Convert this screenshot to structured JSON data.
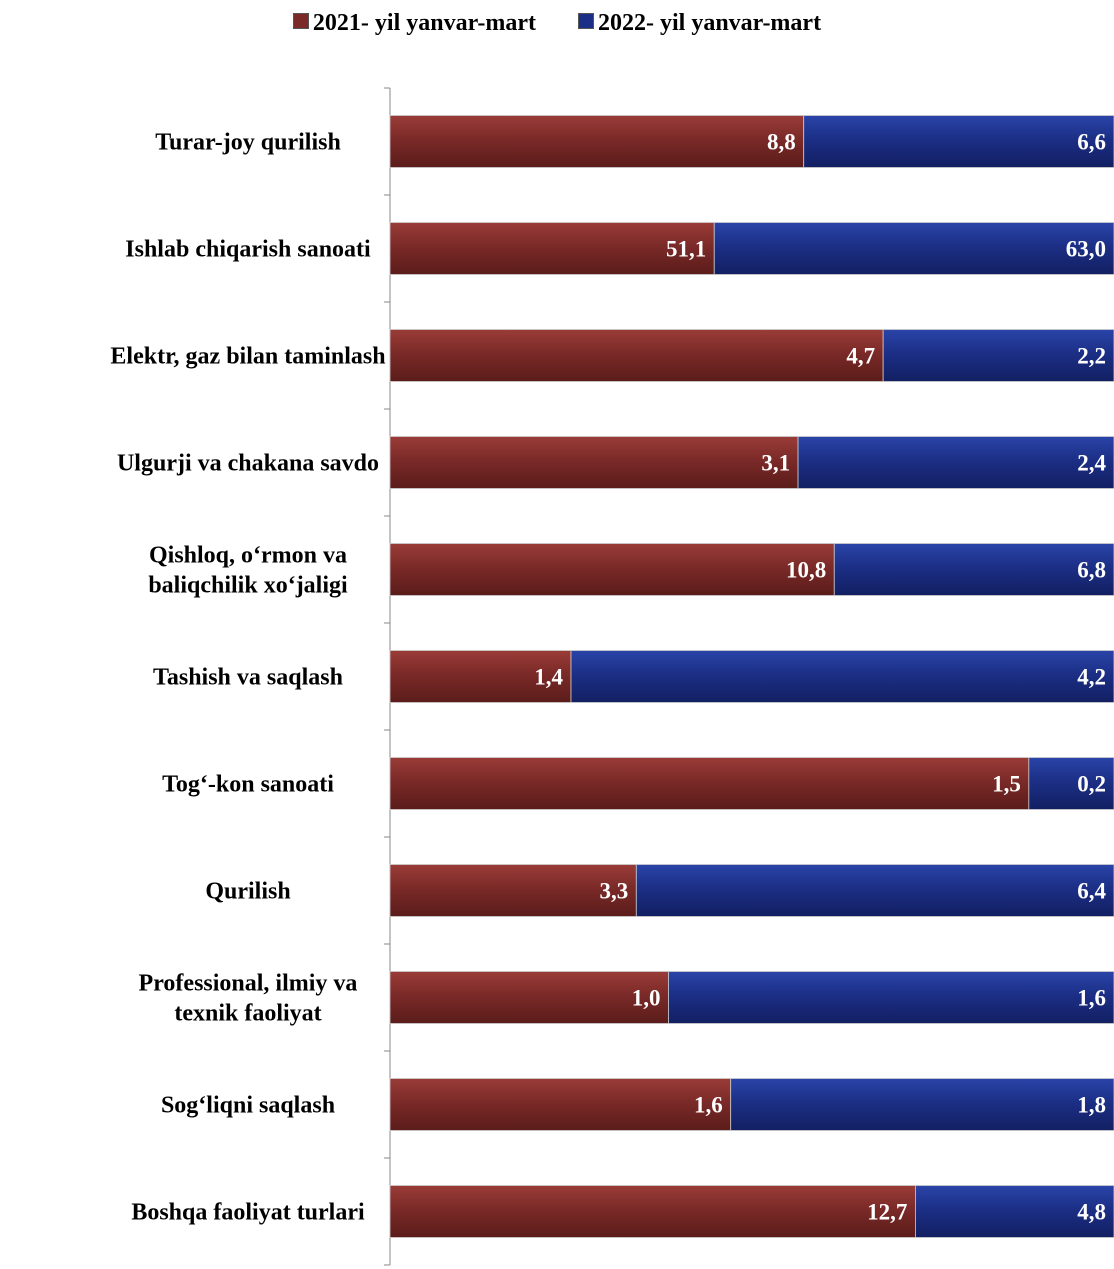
{
  "legend": {
    "series_2021": "2021- yil yanvar-mart",
    "series_2022": "2022- yil yanvar-mart"
  },
  "colors": {
    "series_2021": "#7b2a28",
    "series_2022": "#1c2f86"
  },
  "chart_data": {
    "type": "bar",
    "orientation": "horizontal",
    "stacked": "100%",
    "title": "",
    "xlabel": "",
    "ylabel": "",
    "legend_position": "top",
    "grid": false,
    "categories": [
      "Turar-joy qurilish",
      "Ishlab chiqarish sanoati",
      "Elektr, gaz bilan taminlash",
      "Ulgurji va chakana savdo",
      "Qishloq, o‘rmon va baliqchilik xo‘jaligi",
      "Tashish va saqlash",
      "Tog‘-kon sanoati",
      "Qurilish",
      "Professional, ilmiy va texnik faoliyat",
      "Sog‘liqni saqlash",
      "Boshqa faoliyat turlari"
    ],
    "series": [
      {
        "name": "2021- yil yanvar-mart",
        "values": [
          8.8,
          51.1,
          4.7,
          3.1,
          10.8,
          1.4,
          1.5,
          3.3,
          1.0,
          1.6,
          12.7
        ],
        "labels": [
          "8,8",
          "51,1",
          "4,7",
          "3,1",
          "10,8",
          "1,4",
          "1,5",
          "3,3",
          "1,0",
          "1,6",
          "12,7"
        ]
      },
      {
        "name": "2022- yil yanvar-mart",
        "values": [
          6.6,
          63.0,
          2.2,
          2.4,
          6.8,
          4.2,
          0.2,
          6.4,
          1.6,
          1.8,
          4.8
        ],
        "labels": [
          "6,6",
          "63,0",
          "2,2",
          "2,4",
          "6,8",
          "4,2",
          "0,2",
          "6,4",
          "1,6",
          "1,8",
          "4,8"
        ]
      }
    ]
  }
}
